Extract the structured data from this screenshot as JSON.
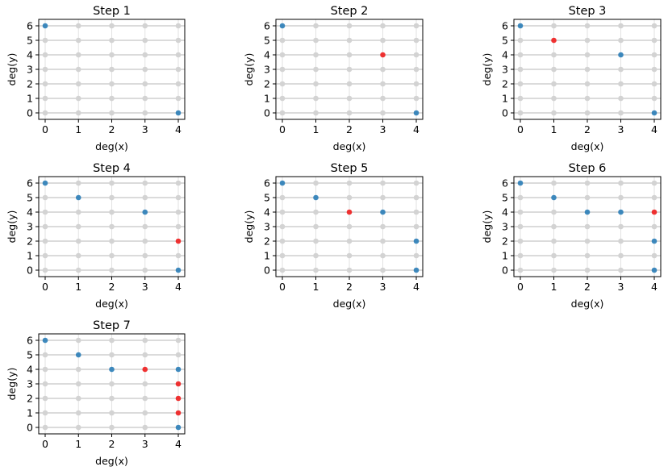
{
  "chart_data": [
    {
      "type": "scatter",
      "title": "Step 1",
      "xlabel": "deg(x)",
      "ylabel": "deg(y)",
      "xlim": [
        0,
        4
      ],
      "ylim": [
        0,
        6
      ],
      "xticks": [
        "0",
        "1",
        "2",
        "3",
        "4"
      ],
      "yticks": [
        "0",
        "1",
        "2",
        "3",
        "4",
        "5",
        "6"
      ],
      "grid": true,
      "grid_points_color": "#d3d3d3",
      "series": [
        {
          "color": "#1f77b4",
          "points": [
            [
              0,
              6
            ],
            [
              4,
              0
            ]
          ]
        },
        {
          "color": "#ee1111",
          "points": []
        }
      ]
    },
    {
      "type": "scatter",
      "title": "Step 2",
      "xlabel": "deg(x)",
      "ylabel": "deg(y)",
      "xlim": [
        0,
        4
      ],
      "ylim": [
        0,
        6
      ],
      "xticks": [
        "0",
        "1",
        "2",
        "3",
        "4"
      ],
      "yticks": [
        "0",
        "1",
        "2",
        "3",
        "4",
        "5",
        "6"
      ],
      "grid": true,
      "grid_points_color": "#d3d3d3",
      "series": [
        {
          "color": "#1f77b4",
          "points": [
            [
              0,
              6
            ],
            [
              4,
              0
            ]
          ]
        },
        {
          "color": "#ee1111",
          "points": [
            [
              3,
              4
            ]
          ]
        }
      ]
    },
    {
      "type": "scatter",
      "title": "Step 3",
      "xlabel": "deg(x)",
      "ylabel": "deg(y)",
      "xlim": [
        0,
        4
      ],
      "ylim": [
        0,
        6
      ],
      "xticks": [
        "0",
        "1",
        "2",
        "3",
        "4"
      ],
      "yticks": [
        "0",
        "1",
        "2",
        "3",
        "4",
        "5",
        "6"
      ],
      "grid": true,
      "grid_points_color": "#d3d3d3",
      "series": [
        {
          "color": "#1f77b4",
          "points": [
            [
              0,
              6
            ],
            [
              3,
              4
            ],
            [
              4,
              0
            ]
          ]
        },
        {
          "color": "#ee1111",
          "points": [
            [
              1,
              5
            ]
          ]
        }
      ]
    },
    {
      "type": "scatter",
      "title": "Step 4",
      "xlabel": "deg(x)",
      "ylabel": "deg(y)",
      "xlim": [
        0,
        4
      ],
      "ylim": [
        0,
        6
      ],
      "xticks": [
        "0",
        "1",
        "2",
        "3",
        "4"
      ],
      "yticks": [
        "0",
        "1",
        "2",
        "3",
        "4",
        "5",
        "6"
      ],
      "grid": true,
      "grid_points_color": "#d3d3d3",
      "series": [
        {
          "color": "#1f77b4",
          "points": [
            [
              0,
              6
            ],
            [
              1,
              5
            ],
            [
              3,
              4
            ],
            [
              4,
              0
            ]
          ]
        },
        {
          "color": "#ee1111",
          "points": [
            [
              4,
              2
            ]
          ]
        }
      ]
    },
    {
      "type": "scatter",
      "title": "Step 5",
      "xlabel": "deg(x)",
      "ylabel": "deg(y)",
      "xlim": [
        0,
        4
      ],
      "ylim": [
        0,
        6
      ],
      "xticks": [
        "0",
        "1",
        "2",
        "3",
        "4"
      ],
      "yticks": [
        "0",
        "1",
        "2",
        "3",
        "4",
        "5",
        "6"
      ],
      "grid": true,
      "grid_points_color": "#d3d3d3",
      "series": [
        {
          "color": "#1f77b4",
          "points": [
            [
              0,
              6
            ],
            [
              1,
              5
            ],
            [
              3,
              4
            ],
            [
              4,
              2
            ],
            [
              4,
              0
            ]
          ]
        },
        {
          "color": "#ee1111",
          "points": [
            [
              2,
              4
            ]
          ]
        }
      ]
    },
    {
      "type": "scatter",
      "title": "Step 6",
      "xlabel": "deg(x)",
      "ylabel": "deg(y)",
      "xlim": [
        0,
        4
      ],
      "ylim": [
        0,
        6
      ],
      "xticks": [
        "0",
        "1",
        "2",
        "3",
        "4"
      ],
      "yticks": [
        "0",
        "1",
        "2",
        "3",
        "4",
        "5",
        "6"
      ],
      "grid": true,
      "grid_points_color": "#d3d3d3",
      "series": [
        {
          "color": "#1f77b4",
          "points": [
            [
              0,
              6
            ],
            [
              1,
              5
            ],
            [
              2,
              4
            ],
            [
              3,
              4
            ],
            [
              4,
              2
            ],
            [
              4,
              0
            ]
          ]
        },
        {
          "color": "#ee1111",
          "points": [
            [
              4,
              4
            ]
          ]
        }
      ]
    },
    {
      "type": "scatter",
      "title": "Step 7",
      "xlabel": "deg(x)",
      "ylabel": "deg(y)",
      "xlim": [
        0,
        4
      ],
      "ylim": [
        0,
        6
      ],
      "xticks": [
        "0",
        "1",
        "2",
        "3",
        "4"
      ],
      "yticks": [
        "0",
        "1",
        "2",
        "3",
        "4",
        "5",
        "6"
      ],
      "grid": true,
      "grid_points_color": "#d3d3d3",
      "series": [
        {
          "color": "#1f77b4",
          "points": [
            [
              0,
              6
            ],
            [
              1,
              5
            ],
            [
              2,
              4
            ],
            [
              4,
              4
            ],
            [
              4,
              0
            ]
          ]
        },
        {
          "color": "#ee1111",
          "points": [
            [
              3,
              4
            ],
            [
              4,
              3
            ],
            [
              4,
              2
            ],
            [
              4,
              1
            ]
          ]
        }
      ]
    }
  ]
}
